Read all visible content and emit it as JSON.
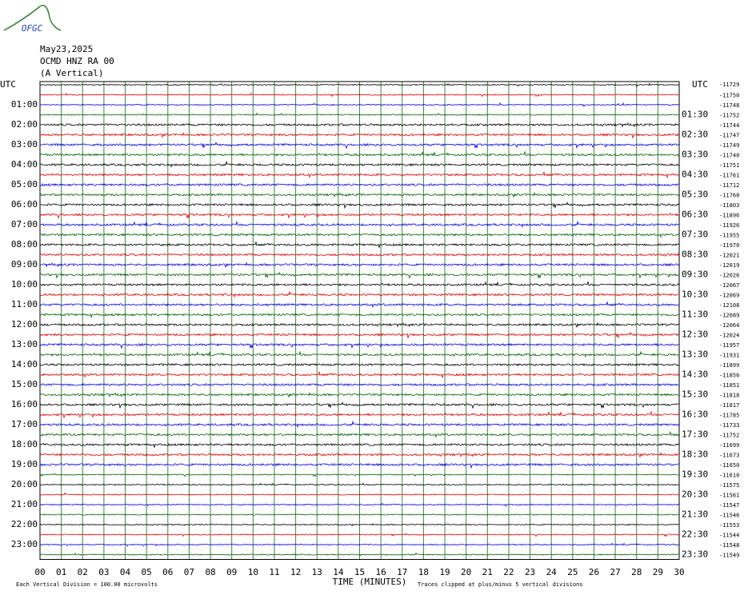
{
  "logo": "OFGC",
  "header": {
    "date": "May23,2025",
    "station": "OCMD HNZ RA 00",
    "component": "(A Vertical)"
  },
  "left_axis": {
    "title": "UTC",
    "labels": [
      "01:00",
      "02:00",
      "03:00",
      "04:00",
      "05:00",
      "06:00",
      "07:00",
      "08:00",
      "09:00",
      "10:00",
      "11:00",
      "12:00",
      "13:00",
      "14:00",
      "15:00",
      "16:00",
      "17:00",
      "18:00",
      "19:00",
      "20:00",
      "21:00",
      "22:00",
      "23:00"
    ]
  },
  "right_axis": {
    "title": "UTC",
    "labels": [
      "01:30",
      "02:30",
      "03:30",
      "04:30",
      "05:30",
      "06:30",
      "07:30",
      "08:30",
      "09:30",
      "10:30",
      "11:30",
      "12:30",
      "13:30",
      "14:30",
      "15:30",
      "16:30",
      "17:30",
      "18:30",
      "19:30",
      "20:30",
      "21:30",
      "22:30",
      "23:30"
    ]
  },
  "offsets": [
    "-11729",
    "-11750",
    "-11748",
    "-11752",
    "-11744",
    "-11747",
    "-11749",
    "-11740",
    "-11751",
    "-11761",
    "-11712",
    "-11760",
    "-11803",
    "-11896",
    "-11926",
    "-11955",
    "-11970",
    "-12021",
    "-12019",
    "-12026",
    "-12067",
    "-12069",
    "-12108",
    "-12089",
    "-12064",
    "-12024",
    "-11957",
    "-11931",
    "-11899",
    "-11856",
    "-11851",
    "-11818",
    "-11817",
    "-11785",
    "-11733",
    "-11752",
    "-11699",
    "-11673",
    "-11650",
    "-11610",
    "-11575",
    "-11561",
    "-11547",
    "-11546",
    "-11553",
    "-11544",
    "-11548",
    "-11549"
  ],
  "x_axis": {
    "title": "TIME (MINUTES)",
    "labels": [
      "00",
      "01",
      "02",
      "03",
      "04",
      "05",
      "06",
      "07",
      "08",
      "09",
      "10",
      "11",
      "12",
      "13",
      "14",
      "15",
      "16",
      "17",
      "18",
      "19",
      "20",
      "21",
      "22",
      "23",
      "24",
      "25",
      "26",
      "27",
      "28",
      "29",
      "30"
    ]
  },
  "footer": {
    "scale": "Each Vertical Division =  100.00 microvolts",
    "clip": "Traces clipped at plus/minus 5 vertical divisions"
  }
}
